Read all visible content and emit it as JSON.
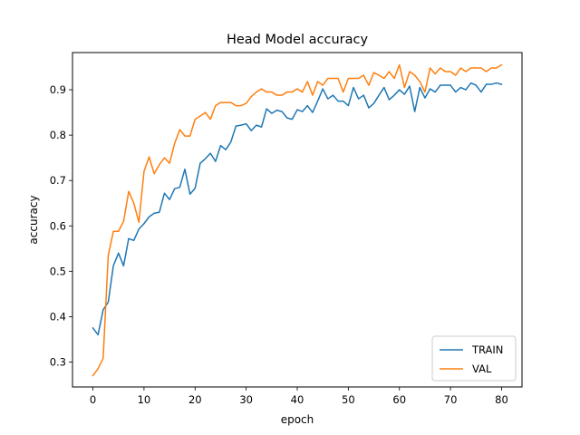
{
  "chart_data": {
    "type": "line",
    "title": "Head Model accuracy",
    "xlabel": "epoch",
    "ylabel": "accuracy",
    "xlim": [
      -4,
      84
    ],
    "ylim": [
      0.245,
      0.982
    ],
    "xticks": [
      0,
      10,
      20,
      30,
      40,
      50,
      60,
      70,
      80
    ],
    "yticks": [
      0.3,
      0.4,
      0.5,
      0.6,
      0.7,
      0.8,
      0.9
    ],
    "ytick_labels": [
      "0.3",
      "0.4",
      "0.5",
      "0.6",
      "0.7",
      "0.8",
      "0.9"
    ],
    "legend": "lower right",
    "grid": false,
    "series": [
      {
        "name": "TRAIN",
        "color": "#1f77b4",
        "values": [
          0.375,
          0.36,
          0.415,
          0.432,
          0.512,
          0.54,
          0.512,
          0.572,
          0.568,
          0.593,
          0.605,
          0.62,
          0.628,
          0.63,
          0.672,
          0.658,
          0.682,
          0.685,
          0.725,
          0.67,
          0.683,
          0.738,
          0.748,
          0.76,
          0.742,
          0.777,
          0.768,
          0.785,
          0.82,
          0.822,
          0.825,
          0.81,
          0.822,
          0.818,
          0.858,
          0.848,
          0.855,
          0.852,
          0.838,
          0.835,
          0.856,
          0.852,
          0.865,
          0.85,
          0.875,
          0.902,
          0.88,
          0.888,
          0.875,
          0.875,
          0.865,
          0.905,
          0.88,
          0.888,
          0.86,
          0.87,
          0.888,
          0.905,
          0.878,
          0.888,
          0.9,
          0.89,
          0.908,
          0.852,
          0.905,
          0.882,
          0.902,
          0.895,
          0.91,
          0.91,
          0.91,
          0.895,
          0.905,
          0.9,
          0.915,
          0.91,
          0.895,
          0.912,
          0.912,
          0.915,
          0.912
        ]
      },
      {
        "name": "VAL",
        "color": "#ff7f0e",
        "values": [
          0.27,
          0.285,
          0.308,
          0.535,
          0.588,
          0.588,
          0.61,
          0.676,
          0.65,
          0.608,
          0.72,
          0.752,
          0.715,
          0.735,
          0.75,
          0.738,
          0.782,
          0.812,
          0.798,
          0.798,
          0.835,
          0.842,
          0.85,
          0.835,
          0.865,
          0.872,
          0.872,
          0.872,
          0.865,
          0.865,
          0.87,
          0.885,
          0.895,
          0.902,
          0.895,
          0.895,
          0.888,
          0.888,
          0.895,
          0.895,
          0.902,
          0.895,
          0.918,
          0.888,
          0.918,
          0.91,
          0.925,
          0.925,
          0.925,
          0.895,
          0.925,
          0.925,
          0.925,
          0.932,
          0.91,
          0.938,
          0.932,
          0.925,
          0.94,
          0.925,
          0.955,
          0.905,
          0.94,
          0.932,
          0.918,
          0.895,
          0.948,
          0.935,
          0.948,
          0.94,
          0.94,
          0.932,
          0.948,
          0.94,
          0.948,
          0.948,
          0.948,
          0.94,
          0.948,
          0.948,
          0.955
        ]
      }
    ]
  }
}
